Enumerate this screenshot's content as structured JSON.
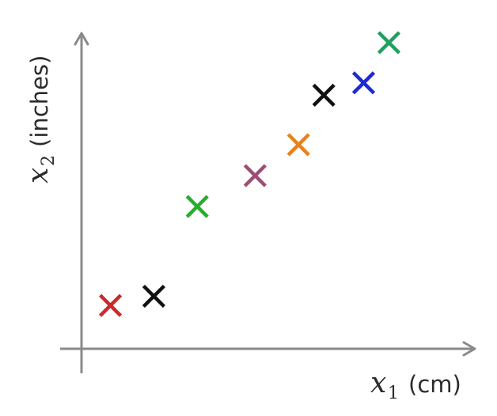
{
  "chart_data": {
    "type": "scatter",
    "title": "",
    "xlabel": {
      "symbol": "x",
      "subscript": "1",
      "unit": "(cm)"
    },
    "ylabel": {
      "symbol": "x",
      "subscript": "2",
      "unit": "(inches)"
    },
    "xlim": [
      0,
      10
    ],
    "ylim": [
      0,
      10
    ],
    "grid": false,
    "legend": "none",
    "marker": "x",
    "points": [
      {
        "x": 0.8,
        "y": 1.4,
        "color": "#cc2a2a"
      },
      {
        "x": 2.0,
        "y": 1.7,
        "color": "#111111"
      },
      {
        "x": 3.2,
        "y": 4.6,
        "color": "#22b02a"
      },
      {
        "x": 4.8,
        "y": 5.6,
        "color": "#9b4f72"
      },
      {
        "x": 6.0,
        "y": 6.6,
        "color": "#e5821e"
      },
      {
        "x": 6.7,
        "y": 8.2,
        "color": "#111111"
      },
      {
        "x": 7.8,
        "y": 8.6,
        "color": "#1f2bd1"
      },
      {
        "x": 8.5,
        "y": 9.9,
        "color": "#1fa05e"
      }
    ]
  }
}
